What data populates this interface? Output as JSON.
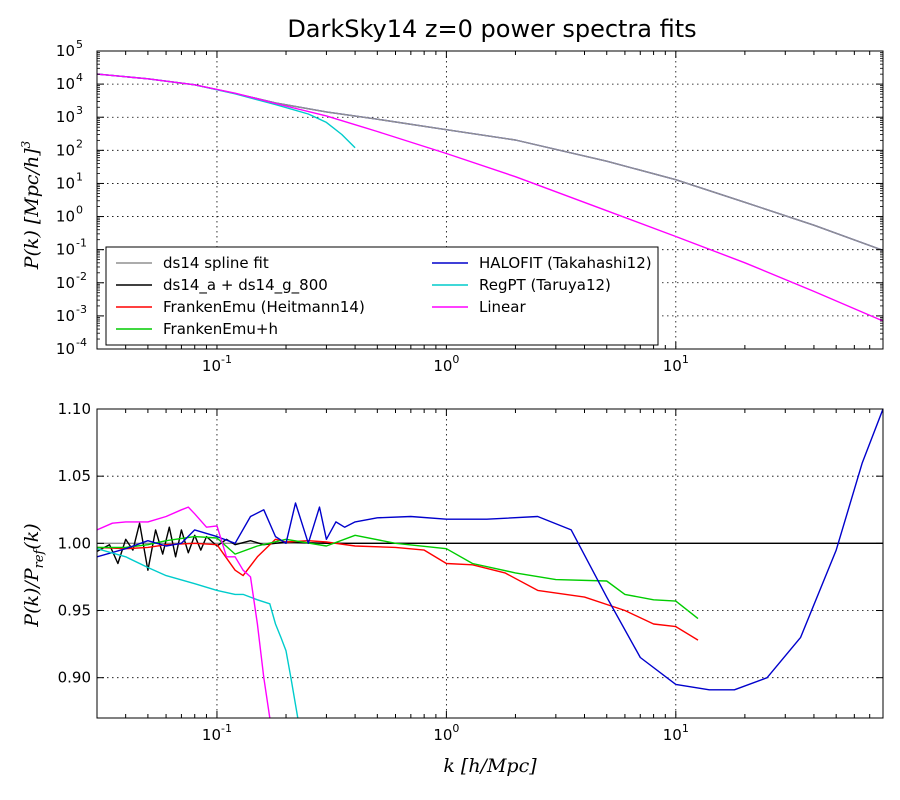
{
  "chart_data": [
    {
      "type": "line",
      "title": "DarkSky14 z=0 power spectra fits",
      "xlabel": "",
      "ylabel": "P(k) [Mpc/h]^3",
      "xscale": "log",
      "yscale": "log",
      "xlim": [
        0.03,
        80
      ],
      "ylim": [
        0.0001,
        100000
      ],
      "grid": true,
      "legend_position": "lower-left",
      "x_ticks": [
        {
          "value": 0.1,
          "base": "10",
          "exp": "-1"
        },
        {
          "value": 1,
          "base": "10",
          "exp": "0"
        },
        {
          "value": 10,
          "base": "10",
          "exp": "1"
        }
      ],
      "y_ticks": [
        {
          "value": 0.0001,
          "base": "10",
          "exp": "-4"
        },
        {
          "value": 0.001,
          "base": "10",
          "exp": "-3"
        },
        {
          "value": 0.01,
          "base": "10",
          "exp": "-2"
        },
        {
          "value": 0.1,
          "base": "10",
          "exp": "-1"
        },
        {
          "value": 1,
          "base": "10",
          "exp": "0"
        },
        {
          "value": 10,
          "base": "10",
          "exp": "1"
        },
        {
          "value": 100,
          "base": "10",
          "exp": "2"
        },
        {
          "value": 1000,
          "base": "10",
          "exp": "3"
        },
        {
          "value": 10000,
          "base": "10",
          "exp": "4"
        },
        {
          "value": 100000,
          "base": "10",
          "exp": "5"
        }
      ],
      "legend": [
        {
          "label": "ds14 spline fit",
          "color": "#909090"
        },
        {
          "label": "ds14_a + ds14_g_800",
          "color": "#000000"
        },
        {
          "label": "FrankenEmu (Heitmann14)",
          "color": "#ff0000"
        },
        {
          "label": "FrankenEmu+h",
          "color": "#00cc00"
        },
        {
          "label": "HALOFIT (Takahashi12)",
          "color": "#0000cc"
        },
        {
          "label": "RegPT (Taruya12)",
          "color": "#00cccc"
        },
        {
          "label": "Linear",
          "color": "#ff00ff"
        }
      ],
      "series": [
        {
          "name": "HALOFIT (Takahashi12)",
          "color": "#0000cc",
          "x": [
            0.03,
            0.05,
            0.08,
            0.12,
            0.18,
            0.3,
            0.5,
            1,
            2,
            5,
            10,
            20,
            40,
            80
          ],
          "y": [
            20000,
            14500,
            9500,
            5200,
            2700,
            1450,
            870,
            420,
            205,
            47,
            13,
            2.7,
            0.55,
            0.095
          ]
        },
        {
          "name": "ds14 spline fit",
          "color": "#909090",
          "x": [
            0.03,
            0.05,
            0.08,
            0.12,
            0.18,
            0.3,
            0.5,
            1,
            2,
            5,
            10,
            20,
            40,
            80
          ],
          "y": [
            20000,
            14500,
            9500,
            5200,
            2700,
            1450,
            870,
            420,
            205,
            47,
            13,
            2.7,
            0.55,
            0.095
          ]
        },
        {
          "name": "RegPT (Taruya12)",
          "color": "#00cccc",
          "x": [
            0.03,
            0.05,
            0.08,
            0.12,
            0.18,
            0.25,
            0.3,
            0.35,
            0.4
          ],
          "y": [
            20000,
            14500,
            9500,
            5100,
            2400,
            1250,
            700,
            300,
            120
          ]
        },
        {
          "name": "Linear",
          "color": "#ff00ff",
          "x": [
            0.03,
            0.05,
            0.08,
            0.12,
            0.18,
            0.3,
            0.5,
            1,
            2,
            5,
            10,
            20,
            40,
            80
          ],
          "y": [
            20000,
            14500,
            9500,
            5300,
            2600,
            1100,
            370,
            80,
            16,
            1.5,
            0.25,
            0.04,
            0.0055,
            0.0007
          ]
        }
      ]
    },
    {
      "type": "line",
      "title": "",
      "xlabel": "k [h/Mpc]",
      "ylabel": "P(k)/P_ref(k)",
      "xscale": "log",
      "yscale": "linear",
      "xlim": [
        0.03,
        80
      ],
      "ylim": [
        0.87,
        1.1
      ],
      "grid": true,
      "x_ticks": [
        {
          "value": 0.1,
          "base": "10",
          "exp": "-1"
        },
        {
          "value": 1,
          "base": "10",
          "exp": "0"
        },
        {
          "value": 10,
          "base": "10",
          "exp": "1"
        }
      ],
      "y_ticks": [
        {
          "value": 0.9,
          "label": "0.90"
        },
        {
          "value": 0.95,
          "label": "0.95"
        },
        {
          "value": 1.0,
          "label": "1.00"
        },
        {
          "value": 1.05,
          "label": "1.05"
        },
        {
          "value": 1.1,
          "label": "1.10"
        }
      ],
      "series": [
        {
          "name": "ds14 spline fit",
          "color": "#909090",
          "x": [
            0.03,
            80
          ],
          "y": [
            1.0,
            1.0
          ]
        },
        {
          "name": "ds14_a + ds14_g_800",
          "color": "#000000",
          "x": [
            0.03,
            0.034,
            0.037,
            0.04,
            0.043,
            0.046,
            0.05,
            0.054,
            0.058,
            0.062,
            0.066,
            0.07,
            0.075,
            0.08,
            0.085,
            0.09,
            0.1,
            0.11,
            0.12,
            0.14,
            0.16,
            0.2,
            0.3,
            0.5,
            1,
            3,
            10,
            30,
            80
          ],
          "y": [
            0.994,
            0.999,
            0.985,
            1.003,
            0.995,
            1.015,
            0.98,
            1.01,
            0.992,
            1.012,
            0.99,
            1.01,
            0.993,
            1.006,
            0.995,
            1.005,
            0.998,
            1.003,
            0.999,
            1.002,
            0.999,
            1.001,
            1.0,
            1.0,
            1.0,
            1.0,
            1.0,
            1.0,
            1.0
          ]
        },
        {
          "name": "FrankenEmu (Heitmann14)",
          "color": "#ff0000",
          "x": [
            0.03,
            0.04,
            0.05,
            0.06,
            0.08,
            0.1,
            0.12,
            0.13,
            0.15,
            0.18,
            0.2,
            0.25,
            0.3,
            0.4,
            0.6,
            0.8,
            1.0,
            1.3,
            1.8,
            2.5,
            4,
            6,
            8,
            10,
            12.5
          ],
          "y": [
            0.997,
            0.996,
            0.997,
            0.999,
            1.0,
            0.999,
            0.98,
            0.976,
            0.99,
            1.003,
            1.001,
            1.002,
            1.001,
            0.998,
            0.997,
            0.995,
            0.985,
            0.984,
            0.978,
            0.965,
            0.96,
            0.95,
            0.94,
            0.938,
            0.928
          ]
        },
        {
          "name": "FrankenEmu+h",
          "color": "#00cc00",
          "x": [
            0.03,
            0.04,
            0.05,
            0.06,
            0.08,
            0.1,
            0.12,
            0.15,
            0.2,
            0.3,
            0.4,
            0.6,
            1.0,
            1.3,
            2.0,
            3,
            5,
            6,
            8,
            10,
            12.5
          ],
          "y": [
            0.997,
            0.997,
            0.999,
            1.002,
            1.005,
            1.004,
            0.992,
            0.998,
            1.003,
            0.998,
            1.006,
            1.0,
            0.996,
            0.985,
            0.978,
            0.973,
            0.972,
            0.962,
            0.958,
            0.957,
            0.944
          ]
        },
        {
          "name": "HALOFIT (Takahashi12)",
          "color": "#0000cc",
          "x": [
            0.03,
            0.04,
            0.05,
            0.06,
            0.07,
            0.08,
            0.1,
            0.12,
            0.14,
            0.16,
            0.18,
            0.2,
            0.22,
            0.25,
            0.28,
            0.3,
            0.33,
            0.36,
            0.4,
            0.5,
            0.7,
            1.0,
            1.5,
            2.5,
            3.5,
            5,
            7,
            10,
            14,
            18,
            25,
            35,
            50,
            65,
            80
          ],
          "y": [
            0.99,
            0.996,
            1.002,
            0.998,
            1.0,
            1.01,
            1.005,
            1.0,
            1.02,
            1.025,
            1.005,
            1.0,
            1.03,
            1.0,
            1.027,
            1.003,
            1.016,
            1.012,
            1.016,
            1.019,
            1.02,
            1.018,
            1.018,
            1.02,
            1.01,
            0.96,
            0.915,
            0.895,
            0.891,
            0.891,
            0.9,
            0.93,
            0.995,
            1.06,
            1.1
          ]
        },
        {
          "name": "RegPT (Taruya12)",
          "color": "#00cccc",
          "x": [
            0.03,
            0.04,
            0.05,
            0.06,
            0.08,
            0.1,
            0.12,
            0.13,
            0.15,
            0.17,
            0.18,
            0.19,
            0.2,
            0.21,
            0.22,
            0.225
          ],
          "y": [
            0.996,
            0.99,
            0.982,
            0.976,
            0.97,
            0.965,
            0.962,
            0.962,
            0.958,
            0.955,
            0.94,
            0.93,
            0.92,
            0.9,
            0.88,
            0.87
          ]
        },
        {
          "name": "Linear",
          "color": "#ff00ff",
          "x": [
            0.03,
            0.035,
            0.04,
            0.05,
            0.06,
            0.07,
            0.075,
            0.08,
            0.09,
            0.1,
            0.11,
            0.12,
            0.13,
            0.14,
            0.15,
            0.16,
            0.17
          ],
          "y": [
            1.01,
            1.015,
            1.016,
            1.016,
            1.02,
            1.025,
            1.027,
            1.022,
            1.012,
            1.013,
            0.99,
            0.99,
            0.98,
            0.975,
            0.94,
            0.9,
            0.87
          ]
        }
      ]
    }
  ]
}
